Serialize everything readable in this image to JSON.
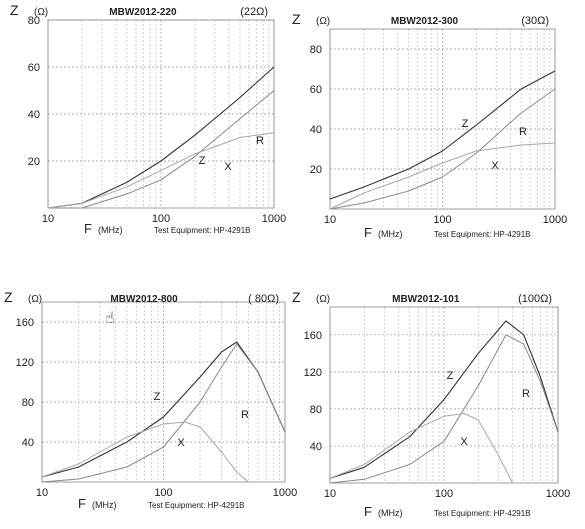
{
  "chart_data": [
    {
      "type": "line",
      "title": "MBW2012-220",
      "y_symbol": "Z",
      "y_unit": "(Ω)",
      "impedance_label": "(22Ω)",
      "x_symbol": "F",
      "x_unit": "(MHz)",
      "equipment": "Test Equipment: HP-4291B",
      "x_scale": "log",
      "xlim": [
        10,
        1000
      ],
      "ylim": [
        0,
        80
      ],
      "x_ticks": [
        10,
        100,
        1000
      ],
      "y_ticks": [
        20,
        40,
        60,
        80
      ],
      "grid": true,
      "series": [
        {
          "name": "Z",
          "x": [
            10,
            20,
            50,
            100,
            200,
            500,
            1000
          ],
          "y": [
            0,
            2,
            11,
            20,
            31,
            47,
            60
          ]
        },
        {
          "name": "R",
          "x": [
            10,
            20,
            50,
            100,
            200,
            500,
            1000
          ],
          "y": [
            0,
            0,
            6,
            12,
            22,
            38,
            50
          ]
        },
        {
          "name": "X",
          "x": [
            10,
            20,
            50,
            100,
            200,
            500,
            1000
          ],
          "y": [
            0,
            2,
            9,
            16,
            23,
            30,
            32
          ]
        }
      ]
    },
    {
      "type": "line",
      "title": "MBW2012-300",
      "y_symbol": "Z",
      "y_unit": "(Ω)",
      "impedance_label": "(30Ω)",
      "x_symbol": "F",
      "x_unit": "(MHz)",
      "equipment": "Test Equipment: HP-4291B",
      "x_scale": "log",
      "xlim": [
        10,
        1000
      ],
      "ylim": [
        0,
        90
      ],
      "x_ticks": [
        10,
        100,
        1000
      ],
      "y_ticks": [
        20,
        40,
        60,
        80
      ],
      "grid": true,
      "series": [
        {
          "name": "Z",
          "x": [
            10,
            20,
            50,
            100,
            200,
            500,
            1000
          ],
          "y": [
            5,
            11,
            20,
            29,
            42,
            60,
            69
          ]
        },
        {
          "name": "R",
          "x": [
            10,
            20,
            50,
            100,
            200,
            500,
            1000
          ],
          "y": [
            0,
            3,
            9,
            16,
            28,
            48,
            60
          ]
        },
        {
          "name": "X",
          "x": [
            10,
            20,
            50,
            100,
            200,
            500,
            1000
          ],
          "y": [
            0,
            8,
            16,
            23,
            29,
            32,
            33
          ]
        }
      ]
    },
    {
      "type": "line",
      "title": "MBW2012-800",
      "y_symbol": "Z",
      "y_unit": "(Ω)",
      "impedance_label": "( 80Ω)",
      "x_symbol": "F",
      "x_unit": "(MHz)",
      "equipment": "Test Equipment: HP-4291B",
      "x_scale": "log",
      "xlim": [
        10,
        1000
      ],
      "ylim": [
        0,
        180
      ],
      "x_ticks": [
        10,
        100,
        1000
      ],
      "y_ticks": [
        40,
        80,
        120,
        160
      ],
      "grid": true,
      "series": [
        {
          "name": "Z",
          "x": [
            10,
            20,
            50,
            100,
            200,
            300,
            400,
            600,
            1000
          ],
          "y": [
            5,
            15,
            40,
            65,
            105,
            130,
            140,
            110,
            50
          ]
        },
        {
          "name": "R",
          "x": [
            10,
            20,
            50,
            100,
            200,
            300,
            400,
            600,
            1000
          ],
          "y": [
            0,
            3,
            15,
            35,
            80,
            115,
            138,
            110,
            50
          ]
        },
        {
          "name": "X",
          "x": [
            10,
            20,
            50,
            100,
            150,
            200,
            300,
            400,
            500
          ],
          "y": [
            5,
            18,
            45,
            58,
            60,
            55,
            30,
            10,
            0
          ]
        }
      ]
    },
    {
      "type": "line",
      "title": "MBW2012-101",
      "y_symbol": "Z",
      "y_unit": "(Ω)",
      "impedance_label": "(100Ω)",
      "x_symbol": "F",
      "x_unit": "(MHz)",
      "equipment": "Test Equipment: HP-4291B",
      "x_scale": "log",
      "xlim": [
        10,
        1000
      ],
      "ylim": [
        0,
        190
      ],
      "x_ticks": [
        10,
        100,
        1000
      ],
      "y_ticks": [
        40,
        80,
        120,
        160
      ],
      "grid": true,
      "series": [
        {
          "name": "Z",
          "x": [
            10,
            20,
            50,
            100,
            200,
            350,
            500,
            700,
            1000
          ],
          "y": [
            5,
            17,
            50,
            90,
            140,
            175,
            160,
            115,
            55
          ]
        },
        {
          "name": "R",
          "x": [
            10,
            20,
            50,
            100,
            200,
            350,
            500,
            700,
            1000
          ],
          "y": [
            0,
            4,
            20,
            45,
            105,
            160,
            150,
            110,
            55
          ]
        },
        {
          "name": "X",
          "x": [
            10,
            20,
            50,
            100,
            150,
            200,
            300,
            400
          ],
          "y": [
            5,
            20,
            55,
            72,
            75,
            68,
            30,
            0
          ]
        }
      ]
    }
  ],
  "cursor_icon": "hand-cursor-icon"
}
